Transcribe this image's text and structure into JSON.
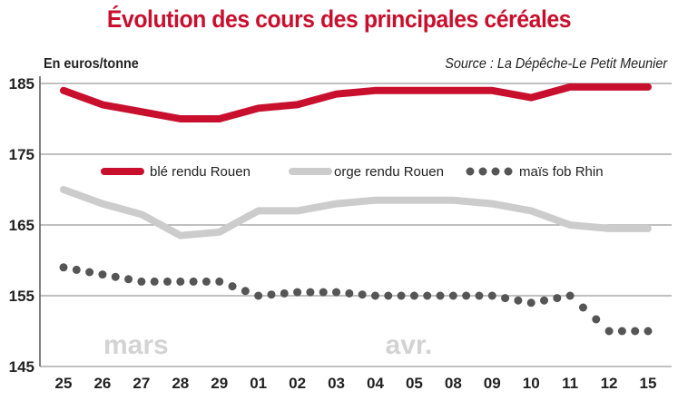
{
  "title": "Évolution des cours des principales céréales",
  "unit": "En euros/tonne",
  "source": "Source : La Dépêche-Le Petit Meunier",
  "months": [
    {
      "label": "mars",
      "at_category": "27"
    },
    {
      "label": "avr.",
      "at_category": "05"
    }
  ],
  "chart_data": {
    "type": "line",
    "categories": [
      "25",
      "26",
      "27",
      "28",
      "29",
      "01",
      "02",
      "03",
      "04",
      "05",
      "08",
      "09",
      "10",
      "11",
      "12",
      "15"
    ],
    "ylim": [
      145,
      185
    ],
    "yticks": [
      145,
      155,
      165,
      175,
      185
    ],
    "grid": "horizontal",
    "legend_position": "middle",
    "series": [
      {
        "name": "blé rendu Rouen",
        "color": "#c8102e",
        "style": "solid",
        "values": [
          184,
          182,
          181,
          180,
          180,
          181.5,
          182,
          183.5,
          184,
          184,
          184,
          184,
          183,
          184.5,
          184.5,
          184.5
        ]
      },
      {
        "name": "orge rendu Rouen",
        "color": "#cccccc",
        "style": "solid",
        "values": [
          170,
          168,
          166.5,
          163.5,
          164,
          167,
          167,
          168,
          168.5,
          168.5,
          168.5,
          168,
          167,
          165,
          164.5,
          164.5
        ]
      },
      {
        "name": "maïs fob Rhin",
        "color": "#555555",
        "style": "dotted",
        "values": [
          159,
          158,
          157,
          157,
          157,
          155,
          155.5,
          155.5,
          155,
          155,
          155,
          155,
          154,
          155,
          150,
          150
        ]
      }
    ]
  }
}
